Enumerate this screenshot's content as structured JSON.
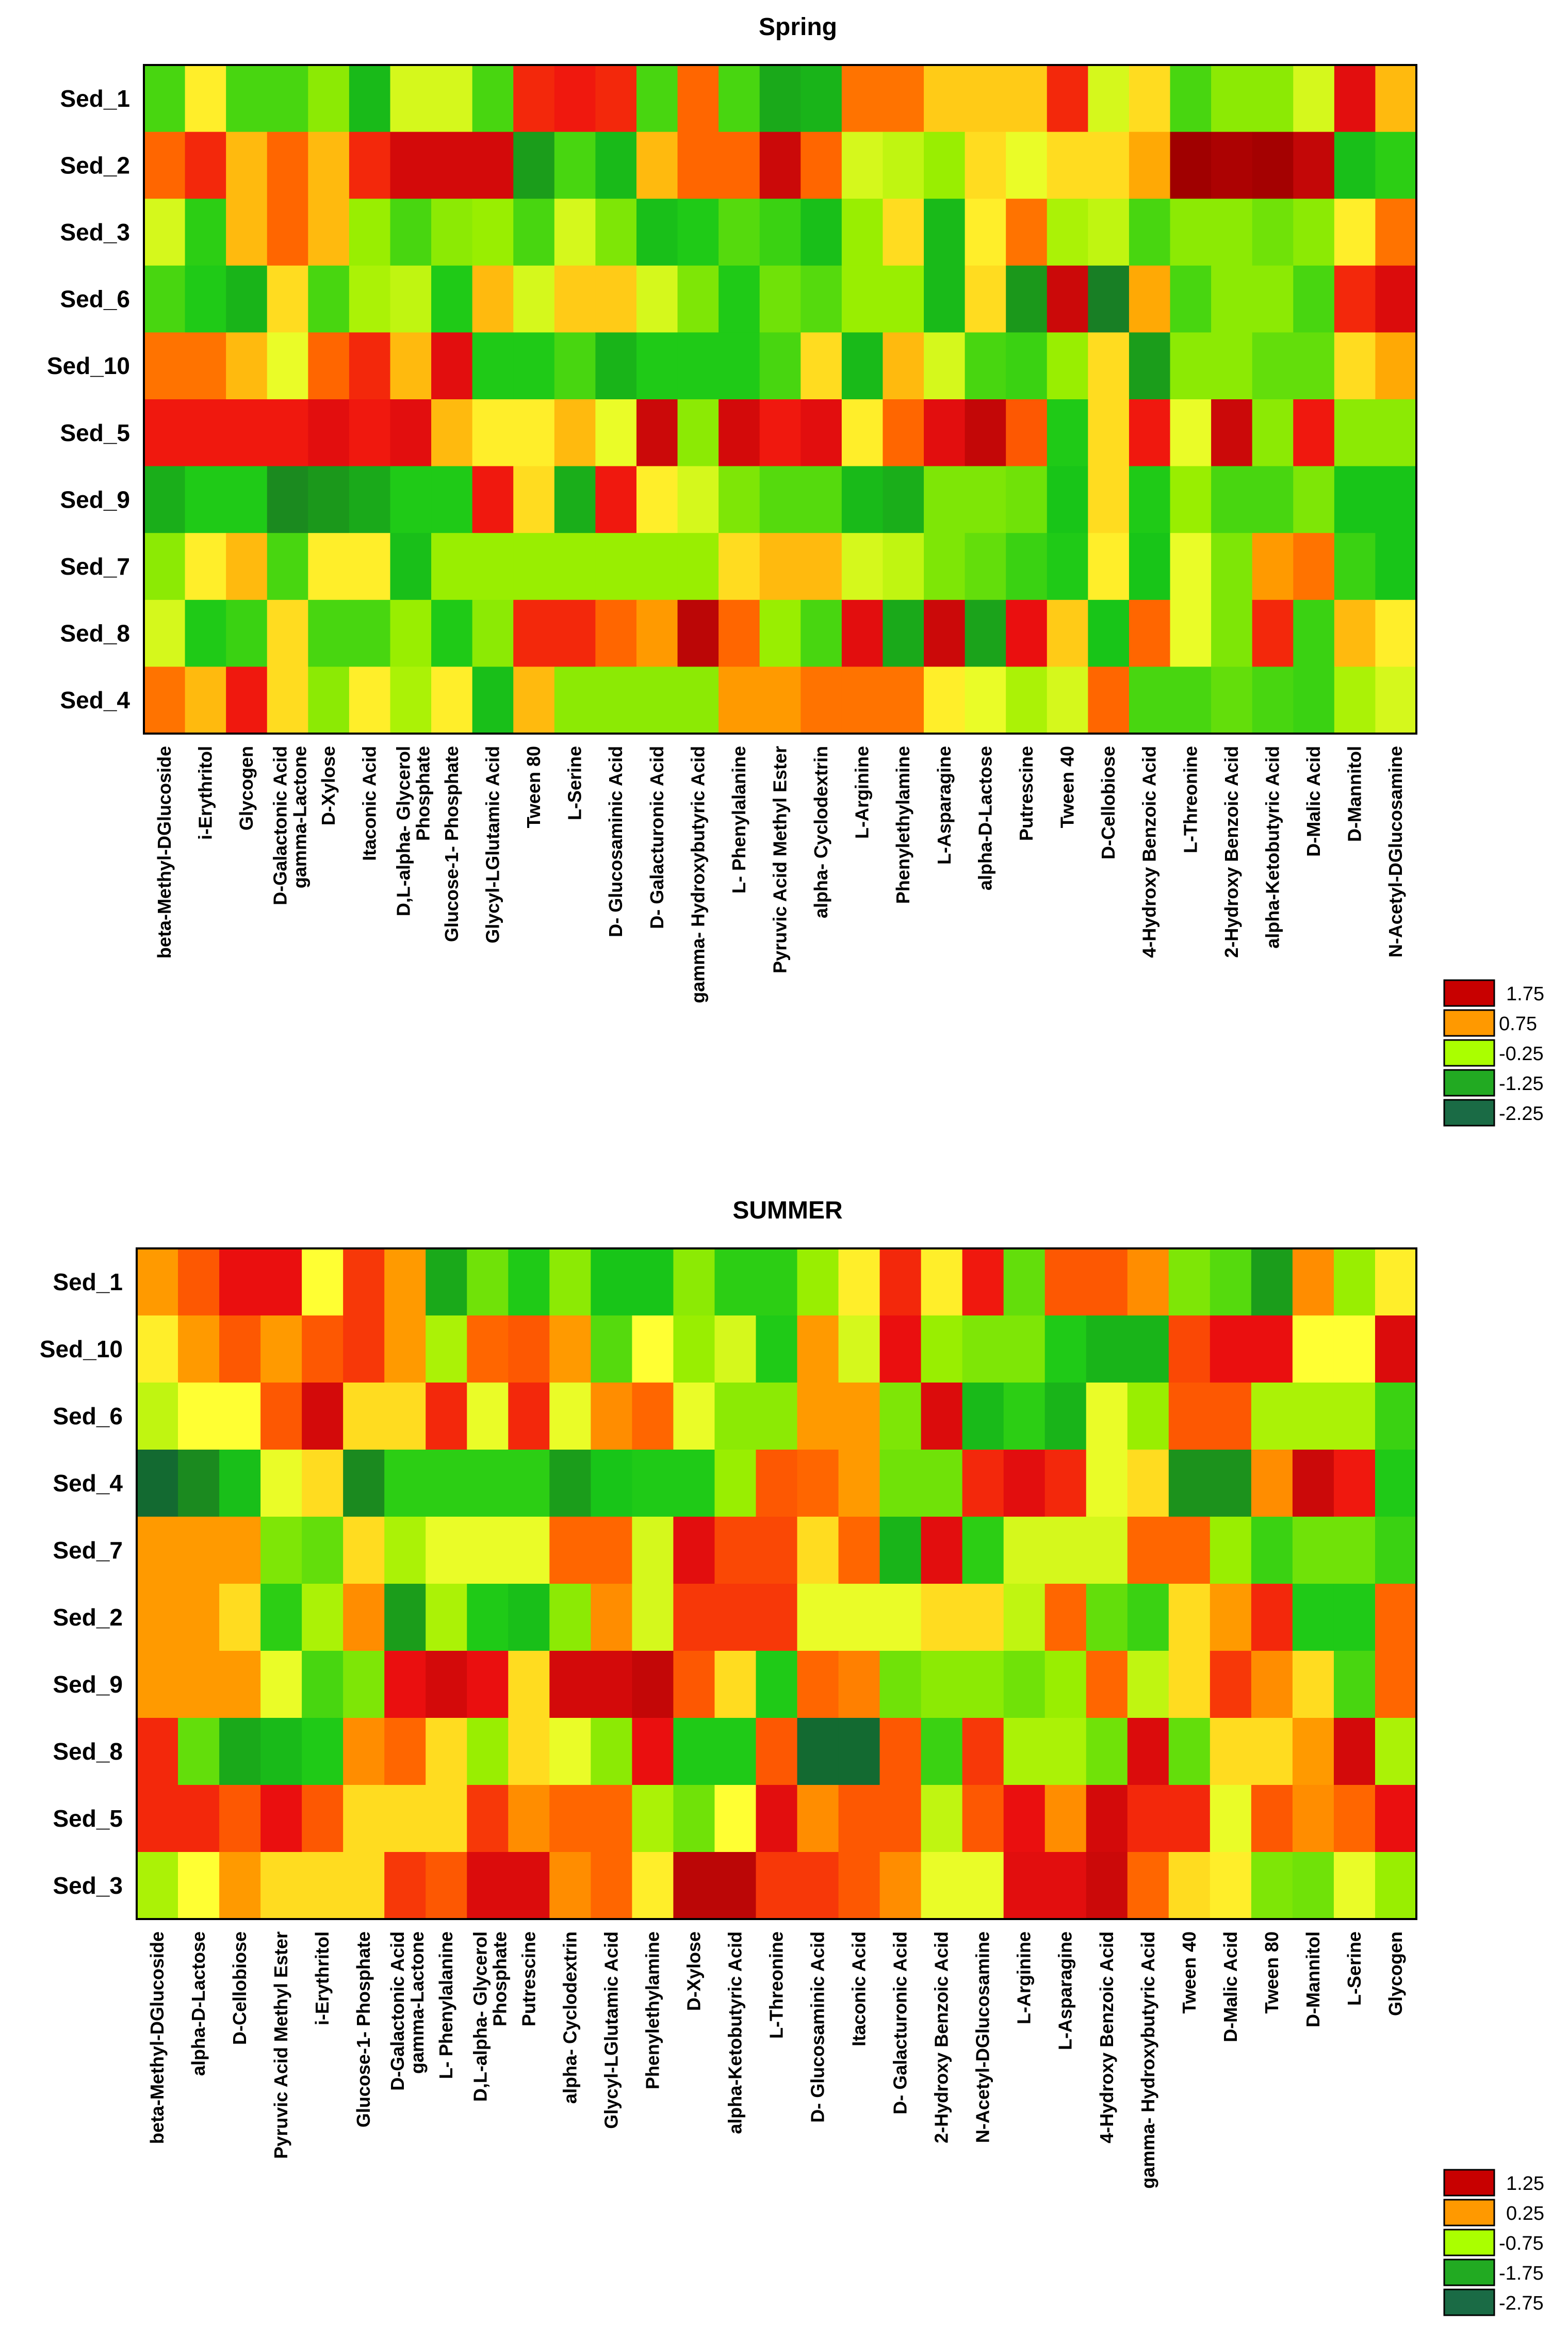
{
  "figure": "Two heatmaps of sediment substrate utilization (Spring and Summer)",
  "chart_data": [
    {
      "type": "heatmap",
      "title": "Spring",
      "rows": [
        "Sed_1",
        "Sed_2",
        "Sed_3",
        "Sed_6",
        "Sed_10",
        "Sed_5",
        "Sed_9",
        "Sed_7",
        "Sed_8",
        "Sed_4"
      ],
      "columns": [
        "beta-Methyl-DGlucoside",
        "i-Erythritol",
        "Glycogen",
        "D-Galactonic Acid gamma-Lactone",
        "D-Xylose",
        "Itaconic Acid",
        "D,L-alpha- Glycerol Phosphate",
        "Glucose-1- Phosphate",
        "Glycyl-LGlutamic Acid",
        "Tween 80",
        "L-Serine",
        "D- Glucosaminic Acid",
        "D- Galacturonic Acid",
        "gamma- Hydroxybutyric Acid",
        "L- Phenylalanine",
        "Pyruvic Acid Methyl Ester",
        "alpha- Cyclodextrin",
        "L-Arginine",
        "Phenylethylamine",
        "L-Asparagine",
        "alpha-D-Lactose",
        "Putrescine",
        "Tween 40",
        "D-Cellobiose",
        "4-Hydroxy Benzoic Acid",
        "L-Threonine",
        "2-Hydroxy Benzoic Acid",
        "alpha-Ketobutyric Acid",
        "D-Malic Acid",
        "D-Mannitol",
        "N-Acetyl-DGlucosamine"
      ],
      "values": [
        [
          -0.9,
          0.3,
          -0.9,
          -0.9,
          -0.4,
          -1.5,
          0.0,
          0.0,
          -0.9,
          1.6,
          1.7,
          1.6,
          -0.9,
          1.2,
          -0.9,
          -1.8,
          -1.6,
          1.1,
          1.1,
          0.5,
          0.5,
          0.5,
          1.6,
          0.0,
          0.4,
          -0.9,
          -0.4,
          -0.4,
          0.0,
          1.9,
          0.6
        ],
        [
          1.2,
          1.6,
          0.6,
          1.2,
          0.6,
          1.6,
          2.1,
          2.1,
          2.1,
          -2.0,
          -0.9,
          -1.5,
          0.6,
          1.2,
          1.2,
          2.2,
          1.2,
          0.0,
          -0.1,
          -0.3,
          0.4,
          0.1,
          0.4,
          0.4,
          0.7,
          2.9,
          2.6,
          2.7,
          2.3,
          -1.4,
          -1.1
        ],
        [
          0.0,
          -1.1,
          0.6,
          1.2,
          0.6,
          -0.3,
          -0.9,
          -0.4,
          -0.3,
          -0.9,
          0.0,
          -0.5,
          -1.4,
          -1.2,
          -0.8,
          -1.0,
          -1.4,
          -0.3,
          0.4,
          -1.5,
          0.3,
          1.1,
          -0.2,
          -0.1,
          -0.9,
          -0.4,
          -0.4,
          -0.6,
          -0.4,
          0.3,
          1.1
        ],
        [
          -0.9,
          -1.2,
          -1.6,
          0.4,
          -0.9,
          -0.2,
          -0.1,
          -1.2,
          0.6,
          0.0,
          0.5,
          0.5,
          0.0,
          -0.5,
          -1.2,
          -0.6,
          -0.8,
          -0.3,
          -0.3,
          -1.5,
          0.4,
          -2.1,
          2.2,
          -2.4,
          0.7,
          -0.9,
          -0.4,
          -0.4,
          -0.9,
          1.6,
          2.0
        ],
        [
          1.1,
          1.1,
          0.6,
          0.1,
          1.2,
          1.6,
          0.6,
          1.9,
          -1.2,
          -1.2,
          -0.9,
          -1.6,
          -1.2,
          -1.2,
          -1.2,
          -0.9,
          0.4,
          -1.5,
          0.6,
          0.0,
          -0.9,
          -1.0,
          -0.3,
          0.4,
          -2.0,
          -0.4,
          -0.4,
          -0.7,
          -0.7,
          0.4,
          0.7
        ],
        [
          1.7,
          1.7,
          1.7,
          1.7,
          1.9,
          1.7,
          1.9,
          0.6,
          0.3,
          0.3,
          0.6,
          0.1,
          2.2,
          -0.4,
          2.1,
          1.7,
          1.9,
          0.3,
          1.2,
          1.9,
          2.3,
          1.3,
          -1.2,
          0.4,
          1.7,
          0.1,
          2.2,
          -0.4,
          1.7,
          -0.4,
          -0.4
        ],
        [
          -1.7,
          -1.2,
          -1.2,
          -2.3,
          -2.1,
          -1.8,
          -1.2,
          -1.2,
          1.7,
          0.4,
          -1.7,
          1.7,
          0.3,
          0.0,
          -0.5,
          -0.8,
          -0.8,
          -1.5,
          -1.7,
          -0.5,
          -0.5,
          -0.6,
          -1.3,
          0.4,
          -1.2,
          -0.3,
          -0.9,
          -0.9,
          -0.5,
          -1.3,
          -1.3
        ],
        [
          -0.4,
          0.3,
          0.6,
          -0.9,
          0.3,
          0.3,
          -1.4,
          -0.3,
          -0.3,
          -0.3,
          -0.3,
          -0.3,
          -0.3,
          -0.3,
          0.4,
          0.6,
          0.6,
          0.0,
          -0.1,
          -0.5,
          -0.7,
          -1.0,
          -1.2,
          0.3,
          -1.3,
          0.1,
          -0.5,
          0.8,
          1.1,
          -1.0,
          -1.3
        ],
        [
          0.0,
          -1.2,
          -1.0,
          0.4,
          -0.9,
          -0.9,
          -0.3,
          -1.2,
          -0.4,
          1.6,
          1.6,
          1.2,
          0.8,
          2.4,
          1.2,
          -0.3,
          -0.9,
          1.9,
          -1.8,
          2.2,
          -1.9,
          1.8,
          0.5,
          -1.3,
          1.2,
          0.1,
          -0.5,
          1.6,
          -1.0,
          0.6,
          0.3
        ],
        [
          1.1,
          0.6,
          1.7,
          0.4,
          -0.4,
          0.3,
          -0.2,
          0.3,
          -1.4,
          0.6,
          -0.4,
          -0.4,
          -0.4,
          -0.4,
          0.8,
          0.8,
          1.1,
          1.1,
          1.1,
          0.3,
          0.1,
          -0.2,
          0.0,
          1.2,
          -0.9,
          -0.9,
          -0.7,
          -0.9,
          -1.0,
          -0.2,
          0.0
        ]
      ],
      "legend": {
        "labels": [
          "1.75",
          "0.75",
          "-0.25",
          "-1.25",
          "-2.25"
        ]
      }
    },
    {
      "type": "heatmap",
      "title": "SUMMER",
      "rows": [
        "Sed_1",
        "Sed_10",
        "Sed_6",
        "Sed_4",
        "Sed_7",
        "Sed_2",
        "Sed_9",
        "Sed_8",
        "Sed_5",
        "Sed_3"
      ],
      "columns": [
        "beta-Methyl-DGlucoside",
        "alpha-D-Lactose",
        "D-Cellobiose",
        "Pyruvic Acid Methyl Ester",
        "i-Erythritol",
        "Glucose-1- Phosphate",
        "D-Galactonic Acid gamma-Lactone",
        "L- Phenylalanine",
        "D,L-alpha- Glycerol Phosphate",
        "Putrescine",
        "alpha- Cyclodextrin",
        "Glycyl-LGlutamic Acid",
        "Phenylethylamine",
        "D-Xylose",
        "alpha-Ketobutyric Acid",
        "L-Threonine",
        "D- Glucosaminic Acid",
        "Itaconic Acid",
        "D- Galacturonic Acid",
        "2-Hydroxy Benzoic Acid",
        "N-Acetyl-DGlucosamine",
        "L-Arginine",
        "L-Asparagine",
        "4-Hydroxy Benzoic Acid",
        "gamma- Hydroxybutyric Acid",
        "Tween 40",
        "D-Malic Acid",
        "Tween 80",
        "D-Mannitol",
        "L-Serine",
        "Glycogen"
      ],
      "values": [
        [
          0.8,
          1.3,
          1.8,
          1.8,
          0.2,
          1.5,
          0.8,
          -1.8,
          -0.6,
          -1.2,
          -0.4,
          -1.3,
          -1.3,
          -0.4,
          -1.1,
          -1.1,
          -0.3,
          0.3,
          1.6,
          0.3,
          1.7,
          -0.7,
          1.3,
          1.3,
          0.9,
          -0.5,
          -0.8,
          -2.0,
          0.9,
          -0.3,
          0.3
        ],
        [
          0.3,
          0.8,
          1.3,
          0.8,
          1.3,
          1.5,
          0.8,
          -0.2,
          1.2,
          1.3,
          0.8,
          -0.8,
          0.2,
          -0.3,
          0.0,
          -1.2,
          0.8,
          0.0,
          1.8,
          -0.3,
          -0.5,
          -0.5,
          -1.2,
          -1.6,
          -1.6,
          1.4,
          1.8,
          1.8,
          0.2,
          0.2,
          2.0
        ],
        [
          -0.1,
          0.2,
          0.2,
          1.3,
          2.1,
          0.4,
          0.4,
          1.6,
          0.1,
          1.6,
          0.1,
          0.9,
          1.2,
          0.1,
          -0.4,
          -0.4,
          0.8,
          0.8,
          -0.5,
          2.0,
          -1.5,
          -1.1,
          -1.6,
          0.1,
          -0.3,
          1.3,
          1.3,
          -0.2,
          -0.2,
          -0.2,
          -1.0
        ],
        [
          -2.6,
          -2.3,
          -1.4,
          0.1,
          0.4,
          -2.3,
          -1.1,
          -1.1,
          -1.1,
          -1.1,
          -2.0,
          -1.3,
          -1.2,
          -1.2,
          -0.3,
          1.3,
          1.2,
          0.8,
          -0.6,
          -0.6,
          1.6,
          1.9,
          1.6,
          0.1,
          0.4,
          -2.2,
          -2.2,
          0.9,
          2.2,
          1.7,
          -1.2
        ],
        [
          0.8,
          0.8,
          0.8,
          -0.5,
          -0.7,
          0.4,
          -0.2,
          0.1,
          0.1,
          0.1,
          1.2,
          1.2,
          0.0,
          1.9,
          1.4,
          1.4,
          0.4,
          1.2,
          -1.6,
          1.9,
          -1.1,
          0.0,
          0.0,
          0.0,
          1.2,
          1.2,
          -0.3,
          -1.0,
          -0.6,
          -0.6,
          -1.0
        ],
        [
          0.8,
          0.8,
          0.4,
          -1.1,
          -0.2,
          0.9,
          -2.0,
          -0.2,
          -1.2,
          -1.4,
          -0.4,
          0.9,
          0.0,
          1.5,
          1.5,
          1.5,
          0.1,
          0.1,
          0.1,
          0.4,
          0.4,
          -0.1,
          1.2,
          -0.7,
          -1.0,
          0.4,
          0.8,
          1.6,
          -1.2,
          -1.2,
          1.2
        ],
        [
          0.8,
          0.8,
          0.8,
          0.1,
          -0.9,
          -0.5,
          1.8,
          2.1,
          1.8,
          0.4,
          2.1,
          2.1,
          2.3,
          1.3,
          0.4,
          -1.2,
          1.2,
          1.0,
          -0.6,
          -0.4,
          -0.4,
          -0.6,
          -0.3,
          1.2,
          -0.1,
          0.4,
          1.5,
          0.9,
          0.4,
          -0.9,
          1.2
        ],
        [
          1.6,
          -0.7,
          -1.8,
          -1.5,
          -1.2,
          0.9,
          1.2,
          0.4,
          -0.3,
          0.4,
          0.1,
          -0.4,
          1.8,
          -1.2,
          -1.2,
          1.3,
          -2.6,
          -2.6,
          1.3,
          -1.0,
          1.5,
          -0.2,
          -0.2,
          -0.6,
          2.0,
          -0.7,
          0.4,
          0.4,
          0.8,
          2.1,
          -0.2
        ],
        [
          1.6,
          1.6,
          1.3,
          1.8,
          1.3,
          0.4,
          0.4,
          0.4,
          1.5,
          0.9,
          1.2,
          1.2,
          -0.2,
          -0.6,
          0.2,
          1.9,
          0.9,
          1.3,
          1.3,
          -0.1,
          1.3,
          1.8,
          0.9,
          2.1,
          1.6,
          1.6,
          0.1,
          1.3,
          0.9,
          1.2,
          1.8
        ],
        [
          -0.2,
          0.2,
          0.8,
          0.4,
          0.4,
          0.4,
          1.5,
          1.3,
          2.0,
          2.0,
          0.9,
          1.2,
          0.3,
          2.4,
          2.4,
          1.5,
          1.5,
          1.3,
          0.9,
          0.1,
          0.1,
          1.9,
          1.9,
          2.2,
          1.2,
          0.4,
          0.3,
          -0.5,
          -0.6,
          0.1,
          -0.3
        ]
      ],
      "legend": {
        "labels": [
          "1.25",
          "0.25",
          "-0.75",
          "-1.75",
          "-2.75"
        ]
      }
    }
  ],
  "colors": {
    "scale": [
      "#0F5A3A",
      "#1C8F1C",
      "#18C818",
      "#A0F000",
      "#FFFF33",
      "#FFA000",
      "#FF6000",
      "#EE1010",
      "#A00000"
    ],
    "legend": [
      "#C80000",
      "#FF9900",
      "#AAFF00",
      "#22AA22",
      "#1A6B45"
    ],
    "frame": "#000000"
  }
}
